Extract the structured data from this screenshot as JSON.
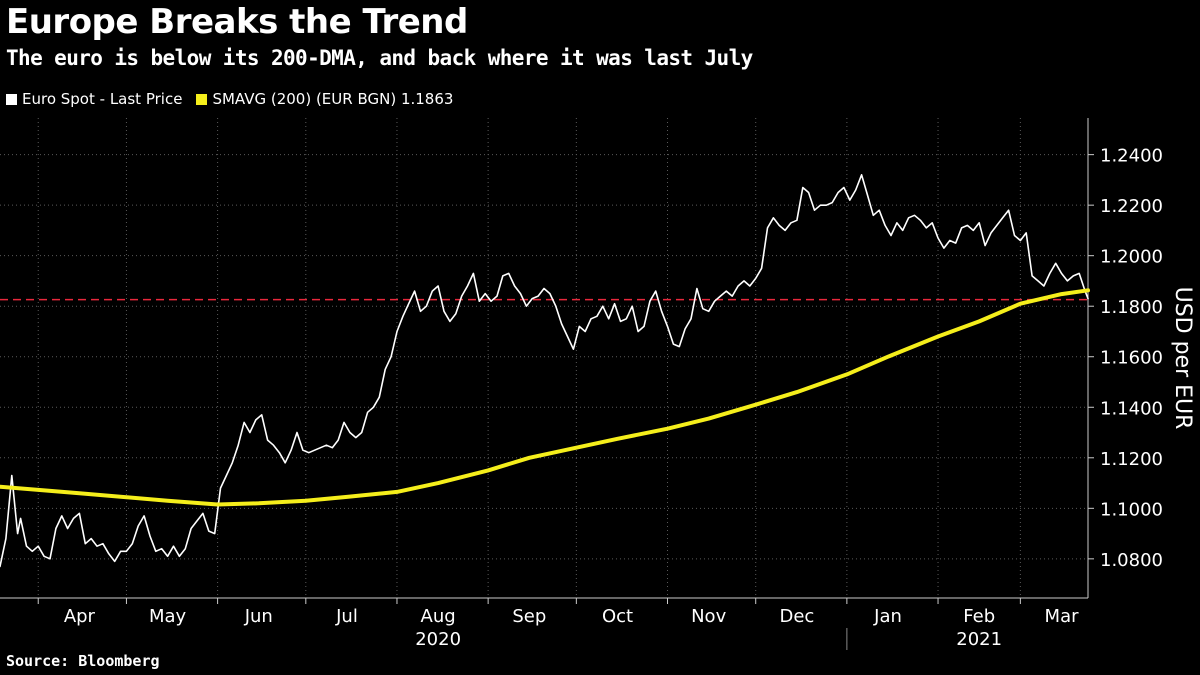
{
  "title": "Europe Breaks the Trend",
  "subtitle": "The euro is below its 200-DMA, and back where it was last July",
  "source": "Source: Bloomberg",
  "legend": [
    {
      "label": "Euro Spot - Last Price",
      "color": "#ffffff"
    },
    {
      "label": "SMAVG (200) (EUR BGN) 1.1863",
      "color": "#f5ee1b"
    }
  ],
  "chart_data": {
    "type": "line",
    "ylabel": "USD per EUR",
    "ylim": [
      1.0645,
      1.2545
    ],
    "y_ticks": [
      "1.2400",
      "1.2200",
      "1.2000",
      "1.1800",
      "1.1600",
      "1.1400",
      "1.1200",
      "1.1000",
      "1.0800"
    ],
    "x_range": [
      "2020-03-19",
      "2021-03-24"
    ],
    "x_ticks": [
      {
        "date": "2020-04-15",
        "label": "Apr"
      },
      {
        "date": "2020-05-15",
        "label": "May"
      },
      {
        "date": "2020-06-15",
        "label": "Jun"
      },
      {
        "date": "2020-07-15",
        "label": "Jul"
      },
      {
        "date": "2020-08-15",
        "label": "Aug"
      },
      {
        "date": "2020-09-15",
        "label": "Sep"
      },
      {
        "date": "2020-10-15",
        "label": "Oct"
      },
      {
        "date": "2020-11-15",
        "label": "Nov"
      },
      {
        "date": "2020-12-15",
        "label": "Dec"
      },
      {
        "date": "2021-01-15",
        "label": "Jan"
      },
      {
        "date": "2021-02-15",
        "label": "Feb"
      },
      {
        "date": "2021-03-15",
        "label": "Mar"
      }
    ],
    "month_boundaries": [
      "2020-04-01",
      "2020-05-01",
      "2020-06-01",
      "2020-07-01",
      "2020-08-01",
      "2020-09-01",
      "2020-10-01",
      "2020-11-01",
      "2020-12-01",
      "2021-01-01",
      "2021-02-01",
      "2021-03-01"
    ],
    "year_labels": [
      {
        "date": "2020-08-15",
        "label": "2020"
      },
      {
        "date": "2021-02-15",
        "label": "2021"
      }
    ],
    "year_boundary": "2021-01-01",
    "reference_line": {
      "value": 1.1826,
      "color": "#e8283c",
      "style": "dashed"
    },
    "series": [
      {
        "name": "Euro Spot - Last Price",
        "color": "#ffffff",
        "points": [
          [
            "2020-03-19",
            1.077
          ],
          [
            "2020-03-21",
            1.088
          ],
          [
            "2020-03-23",
            1.113
          ],
          [
            "2020-03-25",
            1.09
          ],
          [
            "2020-03-26",
            1.096
          ],
          [
            "2020-03-28",
            1.085
          ],
          [
            "2020-03-30",
            1.083
          ],
          [
            "2020-04-01",
            1.085
          ],
          [
            "2020-04-03",
            1.081
          ],
          [
            "2020-04-05",
            1.08
          ],
          [
            "2020-04-07",
            1.092
          ],
          [
            "2020-04-09",
            1.097
          ],
          [
            "2020-04-11",
            1.092
          ],
          [
            "2020-04-13",
            1.096
          ],
          [
            "2020-04-15",
            1.098
          ],
          [
            "2020-04-17",
            1.086
          ],
          [
            "2020-04-19",
            1.088
          ],
          [
            "2020-04-21",
            1.085
          ],
          [
            "2020-04-23",
            1.086
          ],
          [
            "2020-04-25",
            1.082
          ],
          [
            "2020-04-27",
            1.079
          ],
          [
            "2020-04-29",
            1.083
          ],
          [
            "2020-05-01",
            1.083
          ],
          [
            "2020-05-03",
            1.086
          ],
          [
            "2020-05-05",
            1.093
          ],
          [
            "2020-05-07",
            1.097
          ],
          [
            "2020-05-09",
            1.089
          ],
          [
            "2020-05-11",
            1.083
          ],
          [
            "2020-05-13",
            1.084
          ],
          [
            "2020-05-15",
            1.081
          ],
          [
            "2020-05-17",
            1.085
          ],
          [
            "2020-05-19",
            1.081
          ],
          [
            "2020-05-21",
            1.084
          ],
          [
            "2020-05-23",
            1.092
          ],
          [
            "2020-05-25",
            1.095
          ],
          [
            "2020-05-27",
            1.098
          ],
          [
            "2020-05-29",
            1.091
          ],
          [
            "2020-05-31",
            1.09
          ],
          [
            "2020-06-02",
            1.108
          ],
          [
            "2020-06-04",
            1.113
          ],
          [
            "2020-06-06",
            1.118
          ],
          [
            "2020-06-08",
            1.125
          ],
          [
            "2020-06-10",
            1.134
          ],
          [
            "2020-06-12",
            1.13
          ],
          [
            "2020-06-14",
            1.135
          ],
          [
            "2020-06-16",
            1.137
          ],
          [
            "2020-06-18",
            1.127
          ],
          [
            "2020-06-20",
            1.125
          ],
          [
            "2020-06-22",
            1.122
          ],
          [
            "2020-06-24",
            1.118
          ],
          [
            "2020-06-26",
            1.123
          ],
          [
            "2020-06-28",
            1.13
          ],
          [
            "2020-06-30",
            1.123
          ],
          [
            "2020-07-02",
            1.122
          ],
          [
            "2020-07-04",
            1.123
          ],
          [
            "2020-07-06",
            1.124
          ],
          [
            "2020-07-08",
            1.125
          ],
          [
            "2020-07-10",
            1.124
          ],
          [
            "2020-07-12",
            1.127
          ],
          [
            "2020-07-14",
            1.134
          ],
          [
            "2020-07-16",
            1.13
          ],
          [
            "2020-07-18",
            1.128
          ],
          [
            "2020-07-20",
            1.13
          ],
          [
            "2020-07-22",
            1.138
          ],
          [
            "2020-07-24",
            1.14
          ],
          [
            "2020-07-26",
            1.144
          ],
          [
            "2020-07-28",
            1.155
          ],
          [
            "2020-07-30",
            1.16
          ],
          [
            "2020-08-01",
            1.17
          ],
          [
            "2020-08-03",
            1.176
          ],
          [
            "2020-08-05",
            1.181
          ],
          [
            "2020-08-07",
            1.186
          ],
          [
            "2020-08-09",
            1.178
          ],
          [
            "2020-08-11",
            1.18
          ],
          [
            "2020-08-13",
            1.186
          ],
          [
            "2020-08-15",
            1.188
          ],
          [
            "2020-08-17",
            1.178
          ],
          [
            "2020-08-19",
            1.174
          ],
          [
            "2020-08-21",
            1.177
          ],
          [
            "2020-08-23",
            1.184
          ],
          [
            "2020-08-25",
            1.188
          ],
          [
            "2020-08-27",
            1.193
          ],
          [
            "2020-08-29",
            1.182
          ],
          [
            "2020-08-31",
            1.185
          ],
          [
            "2020-09-02",
            1.182
          ],
          [
            "2020-09-04",
            1.184
          ],
          [
            "2020-09-06",
            1.192
          ],
          [
            "2020-09-08",
            1.193
          ],
          [
            "2020-09-10",
            1.188
          ],
          [
            "2020-09-12",
            1.185
          ],
          [
            "2020-09-14",
            1.18
          ],
          [
            "2020-09-16",
            1.183
          ],
          [
            "2020-09-18",
            1.184
          ],
          [
            "2020-09-20",
            1.187
          ],
          [
            "2020-09-22",
            1.185
          ],
          [
            "2020-09-24",
            1.18
          ],
          [
            "2020-09-26",
            1.173
          ],
          [
            "2020-09-28",
            1.168
          ],
          [
            "2020-09-30",
            1.163
          ],
          [
            "2020-10-02",
            1.172
          ],
          [
            "2020-10-04",
            1.17
          ],
          [
            "2020-10-06",
            1.175
          ],
          [
            "2020-10-08",
            1.176
          ],
          [
            "2020-10-10",
            1.18
          ],
          [
            "2020-10-12",
            1.175
          ],
          [
            "2020-10-14",
            1.181
          ],
          [
            "2020-10-16",
            1.174
          ],
          [
            "2020-10-18",
            1.175
          ],
          [
            "2020-10-20",
            1.18
          ],
          [
            "2020-10-22",
            1.17
          ],
          [
            "2020-10-24",
            1.172
          ],
          [
            "2020-10-26",
            1.182
          ],
          [
            "2020-10-28",
            1.186
          ],
          [
            "2020-10-30",
            1.178
          ],
          [
            "2020-11-01",
            1.172
          ],
          [
            "2020-11-03",
            1.165
          ],
          [
            "2020-11-05",
            1.164
          ],
          [
            "2020-11-07",
            1.171
          ],
          [
            "2020-11-09",
            1.175
          ],
          [
            "2020-11-11",
            1.187
          ],
          [
            "2020-11-13",
            1.179
          ],
          [
            "2020-11-15",
            1.178
          ],
          [
            "2020-11-17",
            1.182
          ],
          [
            "2020-11-19",
            1.184
          ],
          [
            "2020-11-21",
            1.186
          ],
          [
            "2020-11-23",
            1.184
          ],
          [
            "2020-11-25",
            1.188
          ],
          [
            "2020-11-27",
            1.19
          ],
          [
            "2020-11-29",
            1.188
          ],
          [
            "2020-12-01",
            1.191
          ],
          [
            "2020-12-03",
            1.195
          ],
          [
            "2020-12-05",
            1.211
          ],
          [
            "2020-12-07",
            1.215
          ],
          [
            "2020-12-09",
            1.212
          ],
          [
            "2020-12-11",
            1.21
          ],
          [
            "2020-12-13",
            1.213
          ],
          [
            "2020-12-15",
            1.214
          ],
          [
            "2020-12-17",
            1.227
          ],
          [
            "2020-12-19",
            1.225
          ],
          [
            "2020-12-21",
            1.218
          ],
          [
            "2020-12-23",
            1.22
          ],
          [
            "2020-12-25",
            1.22
          ],
          [
            "2020-12-27",
            1.221
          ],
          [
            "2020-12-29",
            1.225
          ],
          [
            "2020-12-31",
            1.227
          ],
          [
            "2021-01-02",
            1.222
          ],
          [
            "2021-01-04",
            1.226
          ],
          [
            "2021-01-06",
            1.232
          ],
          [
            "2021-01-08",
            1.224
          ],
          [
            "2021-01-10",
            1.216
          ],
          [
            "2021-01-12",
            1.218
          ],
          [
            "2021-01-14",
            1.212
          ],
          [
            "2021-01-16",
            1.208
          ],
          [
            "2021-01-18",
            1.213
          ],
          [
            "2021-01-20",
            1.21
          ],
          [
            "2021-01-22",
            1.215
          ],
          [
            "2021-01-24",
            1.216
          ],
          [
            "2021-01-26",
            1.214
          ],
          [
            "2021-01-28",
            1.211
          ],
          [
            "2021-01-30",
            1.213
          ],
          [
            "2021-02-01",
            1.207
          ],
          [
            "2021-02-03",
            1.203
          ],
          [
            "2021-02-05",
            1.206
          ],
          [
            "2021-02-07",
            1.205
          ],
          [
            "2021-02-09",
            1.211
          ],
          [
            "2021-02-11",
            1.212
          ],
          [
            "2021-02-13",
            1.21
          ],
          [
            "2021-02-15",
            1.213
          ],
          [
            "2021-02-17",
            1.204
          ],
          [
            "2021-02-19",
            1.209
          ],
          [
            "2021-02-21",
            1.212
          ],
          [
            "2021-02-23",
            1.215
          ],
          [
            "2021-02-25",
            1.218
          ],
          [
            "2021-02-27",
            1.208
          ],
          [
            "2021-03-01",
            1.206
          ],
          [
            "2021-03-03",
            1.209
          ],
          [
            "2021-03-05",
            1.192
          ],
          [
            "2021-03-07",
            1.19
          ],
          [
            "2021-03-09",
            1.188
          ],
          [
            "2021-03-11",
            1.193
          ],
          [
            "2021-03-13",
            1.197
          ],
          [
            "2021-03-15",
            1.193
          ],
          [
            "2021-03-17",
            1.19
          ],
          [
            "2021-03-19",
            1.192
          ],
          [
            "2021-03-21",
            1.193
          ],
          [
            "2021-03-23",
            1.186
          ],
          [
            "2021-03-24",
            1.183
          ]
        ]
      },
      {
        "name": "SMAVG (200) (EUR BGN) 1.1863",
        "color": "#f5ee1b",
        "points": [
          [
            "2020-03-19",
            1.1085
          ],
          [
            "2020-04-15",
            1.106
          ],
          [
            "2020-05-15",
            1.103
          ],
          [
            "2020-06-01",
            1.1015
          ],
          [
            "2020-06-15",
            1.102
          ],
          [
            "2020-07-01",
            1.103
          ],
          [
            "2020-07-15",
            1.1045
          ],
          [
            "2020-08-01",
            1.1065
          ],
          [
            "2020-08-15",
            1.11
          ],
          [
            "2020-09-01",
            1.115
          ],
          [
            "2020-09-15",
            1.12
          ],
          [
            "2020-10-01",
            1.124
          ],
          [
            "2020-10-15",
            1.1275
          ],
          [
            "2020-11-01",
            1.1315
          ],
          [
            "2020-11-15",
            1.1355
          ],
          [
            "2020-12-01",
            1.141
          ],
          [
            "2020-12-15",
            1.146
          ],
          [
            "2021-01-01",
            1.153
          ],
          [
            "2021-01-15",
            1.16
          ],
          [
            "2021-02-01",
            1.168
          ],
          [
            "2021-02-15",
            1.174
          ],
          [
            "2021-03-01",
            1.181
          ],
          [
            "2021-03-15",
            1.1848
          ],
          [
            "2021-03-24",
            1.1863
          ]
        ]
      }
    ]
  }
}
